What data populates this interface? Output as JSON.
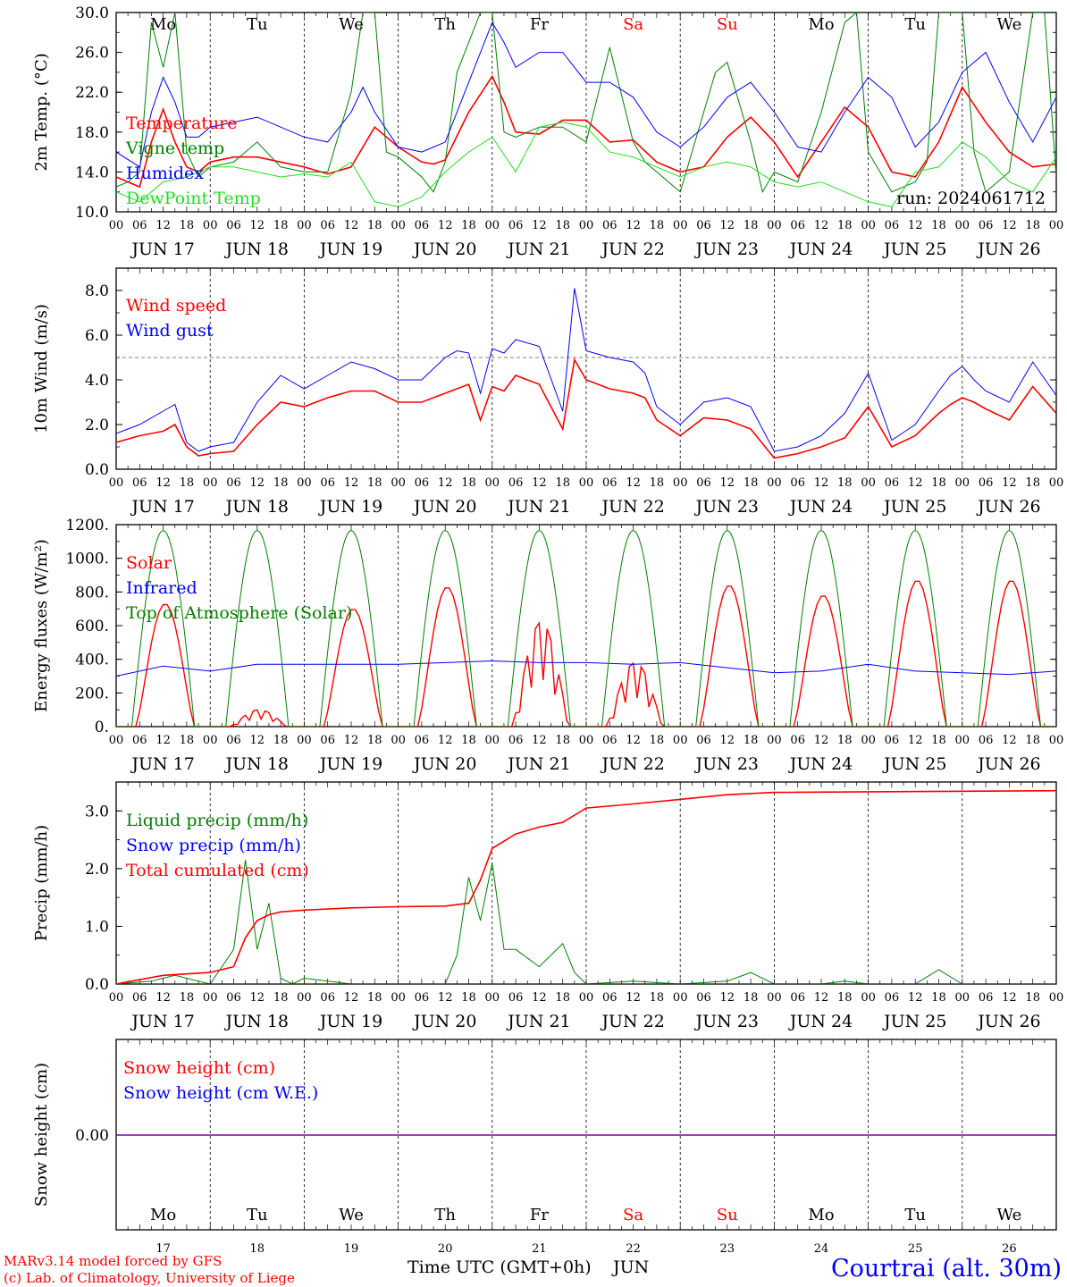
{
  "run_label": "run: 2024061712",
  "days": [
    "17",
    "18",
    "19",
    "20",
    "21",
    "22",
    "23",
    "24",
    "25",
    "26"
  ],
  "date_labels": [
    "JUN 17",
    "JUN 18",
    "JUN 19",
    "JUN 20",
    "JUN 21",
    "JUN 22",
    "JUN 23",
    "JUN 24",
    "JUN 25",
    "JUN 26"
  ],
  "day_names": [
    "Mo",
    "Tu",
    "We",
    "Th",
    "Fr",
    "Sa",
    "Su",
    "Mo",
    "Tu",
    "We"
  ],
  "weekend_days": [
    5,
    6
  ],
  "hour_ticks": [
    "00",
    "06",
    "12",
    "18"
  ],
  "colors": {
    "red": "#ff0000",
    "blue": "#0000ff",
    "green": "#008000",
    "lightgreen": "#22dd22",
    "purple": "#8000a0",
    "footer_blue": "#0000ff"
  },
  "footer": {
    "model": "MARv3.14 model forced by GFS",
    "copyright": "(c) Lab. of Climatology, University of Liege",
    "time_axis": "Time UTC (GMT+0h)",
    "month": "JUN",
    "station": "Courtrai (alt. 30m)"
  },
  "chart_data": [
    {
      "type": "line",
      "ylabel": "2m Temp. (°C)",
      "ylim": [
        10,
        30
      ],
      "yticks": [
        "10.0",
        "14.0",
        "18.0",
        "22.0",
        "26.0",
        "30.0"
      ],
      "ytick_values": [
        10,
        14,
        18,
        22,
        26,
        30
      ],
      "x_unit": "hours since JUN 17 00 UTC",
      "series": [
        {
          "name": "Temperature",
          "color": "red",
          "x": [
            0,
            6,
            9,
            12,
            15,
            18,
            21,
            24,
            30,
            36,
            42,
            48,
            54,
            60,
            66,
            72,
            78,
            81,
            84,
            90,
            96,
            99,
            102,
            108,
            114,
            120,
            126,
            132,
            138,
            144,
            150,
            156,
            162,
            168,
            174,
            180,
            186,
            192,
            198,
            204,
            210,
            216,
            222,
            228,
            234,
            240
          ],
          "y": [
            13.5,
            12.5,
            17,
            20.3,
            17,
            14.5,
            14,
            15,
            15.5,
            15.5,
            15,
            14.5,
            13.8,
            14.5,
            18.5,
            16.5,
            15,
            14.8,
            15.2,
            20,
            23.6,
            21,
            18,
            17.8,
            19.2,
            19.2,
            17,
            17.2,
            15,
            14,
            14.5,
            17.5,
            19.5,
            17,
            13.5,
            17,
            20.5,
            18.5,
            14,
            13.5,
            17,
            22.5,
            19,
            16,
            14.5,
            14.8
          ]
        },
        {
          "name": "Vigne temp",
          "color": "green",
          "x": [
            0,
            3,
            6,
            9,
            12,
            15,
            18,
            21,
            24,
            30,
            36,
            42,
            48,
            54,
            60,
            63,
            66,
            69,
            72,
            78,
            81,
            84,
            87,
            90,
            93,
            96,
            99,
            102,
            108,
            114,
            120,
            126,
            132,
            135,
            138,
            144,
            150,
            153,
            156,
            162,
            165,
            168,
            174,
            180,
            186,
            189,
            192,
            198,
            204,
            207,
            210,
            216,
            219,
            222,
            228,
            234,
            237,
            240
          ],
          "y": [
            12.5,
            13,
            14,
            29,
            24.5,
            30,
            16,
            13.5,
            14.5,
            15,
            17,
            14.5,
            14,
            14,
            22,
            30,
            30,
            16,
            15.5,
            13.5,
            12,
            15,
            24,
            27,
            30,
            30,
            18,
            17.5,
            18.5,
            18.5,
            17,
            26.5,
            17,
            15,
            14,
            12,
            20,
            24,
            25,
            17,
            12,
            14,
            13,
            20,
            29,
            30,
            16,
            12,
            13,
            15,
            30,
            30,
            16,
            12,
            14,
            30,
            30,
            13.5
          ]
        },
        {
          "name": "Humidex",
          "color": "blue",
          "x": [
            0,
            6,
            9,
            12,
            15,
            18,
            21,
            24,
            30,
            36,
            42,
            48,
            54,
            60,
            63,
            66,
            72,
            78,
            81,
            84,
            90,
            96,
            99,
            102,
            108,
            114,
            120,
            126,
            132,
            138,
            144,
            150,
            156,
            162,
            168,
            174,
            180,
            186,
            192,
            198,
            204,
            210,
            216,
            222,
            228,
            234,
            240
          ],
          "y": [
            16,
            14.5,
            20,
            23.5,
            21,
            17.5,
            17.5,
            18.5,
            19,
            19.5,
            18.5,
            17.5,
            17,
            20,
            22.5,
            20,
            16.5,
            16,
            16.5,
            17,
            23,
            29,
            27,
            24.5,
            26,
            26,
            23,
            23,
            21.5,
            18,
            16.5,
            18.5,
            21.5,
            23,
            20,
            16.5,
            16,
            20,
            23.5,
            21.5,
            16.5,
            19,
            24,
            26,
            21,
            17,
            21.5
          ]
        },
        {
          "name": "DewPoint Temp",
          "color": "lightgreen",
          "x": [
            0,
            6,
            12,
            18,
            24,
            30,
            36,
            42,
            48,
            54,
            60,
            66,
            72,
            78,
            84,
            90,
            96,
            102,
            108,
            114,
            120,
            126,
            132,
            138,
            144,
            150,
            156,
            162,
            168,
            174,
            180,
            186,
            192,
            198,
            204,
            210,
            216,
            222,
            228,
            234,
            240
          ],
          "y": [
            12,
            11,
            13,
            13.5,
            14.5,
            14.5,
            14,
            13.5,
            13.8,
            13.5,
            15,
            11,
            10.5,
            11.5,
            14,
            16,
            17.5,
            14,
            18.5,
            19,
            18.5,
            16,
            15.5,
            14.5,
            13.5,
            14.5,
            15,
            14.5,
            13,
            12.5,
            13,
            12,
            11,
            10.5,
            14,
            14.5,
            17,
            15.5,
            13,
            12,
            15.5
          ]
        }
      ]
    },
    {
      "type": "line",
      "ylabel": "10m Wind (m/s)",
      "ylim": [
        0,
        9
      ],
      "yticks": [
        "0.0",
        "2.0",
        "4.0",
        "6.0",
        "8.0"
      ],
      "ytick_values": [
        0,
        2,
        4,
        6,
        8
      ],
      "reference_line": 5,
      "series": [
        {
          "name": "Wind speed",
          "color": "red",
          "x": [
            0,
            6,
            12,
            15,
            18,
            21,
            24,
            30,
            36,
            42,
            48,
            54,
            60,
            66,
            72,
            78,
            84,
            87,
            90,
            93,
            96,
            99,
            102,
            108,
            114,
            117,
            120,
            126,
            132,
            135,
            138,
            144,
            150,
            156,
            162,
            168,
            174,
            180,
            186,
            192,
            198,
            204,
            210,
            213,
            216,
            219,
            222,
            228,
            234,
            240
          ],
          "y": [
            1.2,
            1.5,
            1.7,
            2.0,
            1.0,
            0.6,
            0.7,
            0.8,
            2.0,
            3.0,
            2.8,
            3.2,
            3.5,
            3.5,
            3.0,
            3.0,
            3.4,
            3.6,
            3.8,
            2.2,
            3.7,
            3.5,
            4.2,
            3.8,
            1.8,
            4.9,
            4.0,
            3.6,
            3.4,
            3.2,
            2.2,
            1.5,
            2.3,
            2.2,
            1.8,
            0.5,
            0.7,
            1.0,
            1.4,
            2.8,
            1.0,
            1.5,
            2.5,
            2.9,
            3.2,
            3.0,
            2.7,
            2.2,
            3.7,
            2.5
          ]
        },
        {
          "name": "Wind gust",
          "color": "blue",
          "x": [
            0,
            6,
            12,
            15,
            18,
            21,
            24,
            30,
            36,
            42,
            48,
            54,
            60,
            66,
            72,
            78,
            84,
            87,
            90,
            93,
            96,
            99,
            102,
            108,
            114,
            117,
            120,
            126,
            132,
            135,
            138,
            144,
            150,
            156,
            162,
            168,
            174,
            180,
            186,
            192,
            198,
            204,
            210,
            213,
            216,
            219,
            222,
            228,
            234,
            240
          ],
          "y": [
            1.6,
            2.0,
            2.6,
            2.9,
            1.2,
            0.8,
            1.0,
            1.2,
            3.0,
            4.2,
            3.6,
            4.2,
            4.8,
            4.5,
            4.0,
            4.0,
            5.0,
            5.3,
            5.2,
            3.4,
            5.4,
            5.2,
            5.8,
            5.5,
            2.6,
            8.1,
            5.3,
            5.0,
            4.8,
            4.3,
            2.8,
            2.0,
            3.0,
            3.2,
            2.8,
            0.8,
            1.0,
            1.5,
            2.5,
            4.3,
            1.3,
            2.0,
            3.5,
            4.2,
            4.6,
            4.0,
            3.5,
            3.0,
            4.8,
            3.3
          ]
        }
      ]
    },
    {
      "type": "line",
      "ylabel": "Energy fluxes (W/m²)",
      "ylim": [
        0,
        1200
      ],
      "yticks": [
        "0.",
        "200.",
        "400.",
        "600.",
        "800.",
        "1000.",
        "1200."
      ],
      "ytick_values": [
        0,
        200,
        400,
        600,
        800,
        1000,
        1200
      ],
      "series": [
        {
          "name": "Solar",
          "color": "red",
          "daily_peaks": [
            730,
            100,
            700,
            830,
            620,
            380,
            840,
            780,
            870,
            870
          ]
        },
        {
          "name": "Infrared",
          "color": "blue",
          "x": [
            0,
            12,
            24,
            36,
            48,
            60,
            72,
            84,
            96,
            108,
            120,
            132,
            144,
            156,
            168,
            180,
            192,
            204,
            216,
            228,
            240
          ],
          "y": [
            300,
            360,
            330,
            370,
            370,
            370,
            370,
            380,
            390,
            380,
            380,
            370,
            380,
            350,
            320,
            330,
            370,
            330,
            320,
            310,
            330
          ]
        },
        {
          "name": "Top of Atmosphere (Solar)",
          "color": "green",
          "daily_peak": 1165
        }
      ]
    },
    {
      "type": "line",
      "ylabel": "Precip (mm/h)",
      "ylim": [
        0,
        3.5
      ],
      "yticks": [
        "0.0",
        "1.0",
        "2.0",
        "3.0"
      ],
      "ytick_values": [
        0,
        1,
        2,
        3
      ],
      "series": [
        {
          "name": "Liquid precip (mm/h)",
          "color": "green",
          "x": [
            0,
            9,
            12,
            15,
            18,
            21,
            24,
            30,
            33,
            36,
            39,
            42,
            45,
            48,
            60,
            72,
            84,
            87,
            90,
            93,
            96,
            99,
            102,
            108,
            114,
            117,
            120,
            132,
            144,
            156,
            162,
            168,
            180,
            186,
            192,
            204,
            210,
            216,
            240
          ],
          "y": [
            0,
            0.05,
            0.1,
            0.15,
            0.1,
            0.05,
            0,
            0.6,
            2.15,
            0.6,
            1.4,
            0.1,
            0,
            0.1,
            0,
            0,
            0,
            0.5,
            1.85,
            1.1,
            2.1,
            0.6,
            0.6,
            0.3,
            0.7,
            0.2,
            0,
            0.05,
            0,
            0.05,
            0.2,
            0,
            0,
            0.05,
            0,
            0,
            0.25,
            0,
            0
          ]
        },
        {
          "name": "Snow precip (mm/h)",
          "color": "blue",
          "x": [
            0,
            240
          ],
          "y": [
            0,
            0
          ]
        },
        {
          "name": "Total cumulated (cm)",
          "color": "red",
          "x": [
            0,
            12,
            24,
            30,
            33,
            36,
            39,
            42,
            48,
            60,
            72,
            84,
            90,
            93,
            96,
            102,
            108,
            114,
            120,
            132,
            144,
            156,
            168,
            240
          ],
          "y": [
            0,
            0.15,
            0.2,
            0.3,
            0.8,
            1.1,
            1.2,
            1.25,
            1.28,
            1.32,
            1.34,
            1.35,
            1.4,
            1.8,
            2.35,
            2.6,
            2.72,
            2.8,
            3.05,
            3.12,
            3.2,
            3.28,
            3.32,
            3.35
          ]
        }
      ]
    },
    {
      "type": "line",
      "ylabel": "Snow height (cm)",
      "yticks": [
        "0.00"
      ],
      "ytick_values": [
        0
      ],
      "series": [
        {
          "name": "Snow height (cm)",
          "color": "red",
          "x": [
            0,
            240
          ],
          "y": [
            0,
            0
          ]
        },
        {
          "name": "Snow height (cm W.E.)",
          "color": "blue",
          "x": [
            0,
            240
          ],
          "y": [
            0,
            0
          ]
        }
      ]
    }
  ]
}
